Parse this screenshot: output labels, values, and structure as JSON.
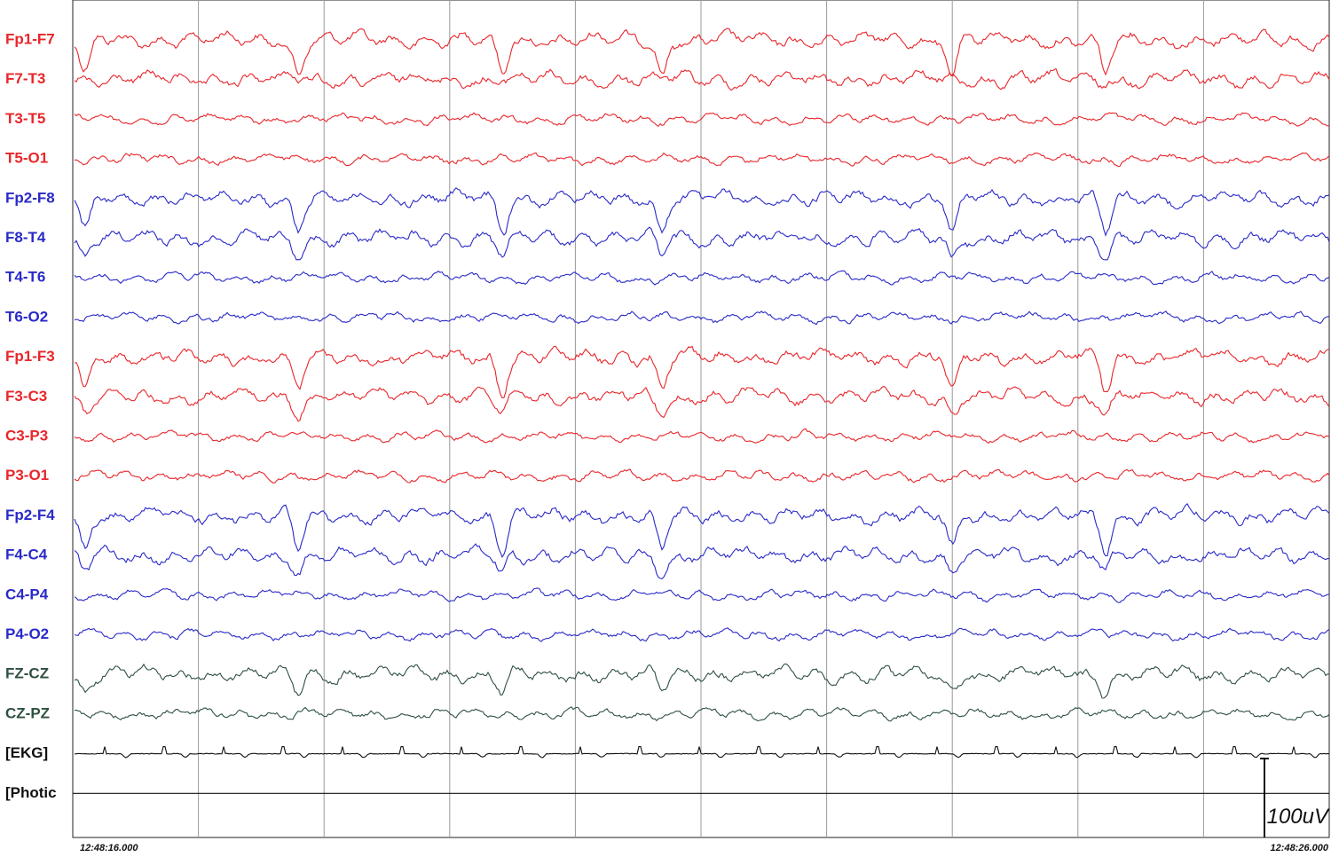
{
  "channels": [
    {
      "label": "Fp1-F7",
      "color": "#e8262b"
    },
    {
      "label": "F7-T3",
      "color": "#e8262b"
    },
    {
      "label": "T3-T5",
      "color": "#e8262b"
    },
    {
      "label": "T5-O1",
      "color": "#e8262b"
    },
    {
      "label": "Fp2-F8",
      "color": "#2a2ac8"
    },
    {
      "label": "F8-T4",
      "color": "#2a2ac8"
    },
    {
      "label": "T4-T6",
      "color": "#2a2ac8"
    },
    {
      "label": "T6-O2",
      "color": "#2a2ac8"
    },
    {
      "label": "Fp1-F3",
      "color": "#e8262b"
    },
    {
      "label": "F3-C3",
      "color": "#e8262b"
    },
    {
      "label": "C3-P3",
      "color": "#e8262b"
    },
    {
      "label": "P3-O1",
      "color": "#e8262b"
    },
    {
      "label": "Fp2-F4",
      "color": "#2a2ac8"
    },
    {
      "label": "F4-C4",
      "color": "#2a2ac8"
    },
    {
      "label": "C4-P4",
      "color": "#2a2ac8"
    },
    {
      "label": "P4-O2",
      "color": "#2a2ac8"
    },
    {
      "label": "FZ-CZ",
      "color": "#2f5040"
    },
    {
      "label": "CZ-PZ",
      "color": "#2f5040"
    },
    {
      "label": "[EKG]",
      "color": "#111111"
    },
    {
      "label": "[Photic",
      "color": "#111111"
    }
  ],
  "time_start": "12:48:16.000",
  "time_end": "12:48:26.000",
  "scale_label": "100uV"
}
